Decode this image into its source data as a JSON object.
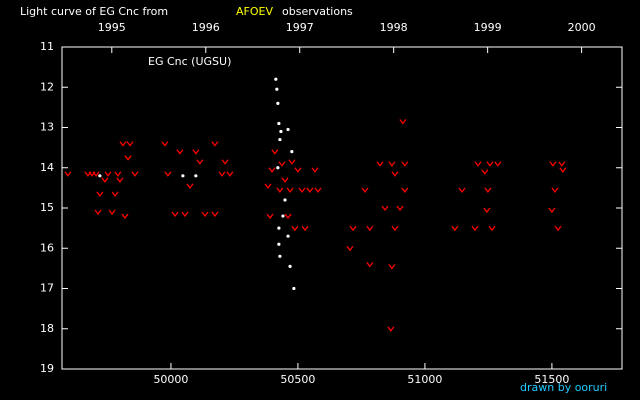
{
  "chart_data": {
    "type": "scatter",
    "title": "Light curve of EG Cnc from",
    "title_highlight": "AFOEV",
    "title_end": "observations",
    "annotation": "EG Cnc (UGSU)",
    "credit": "drawn by ooruri",
    "xlim": [
      49571,
      51776
    ],
    "xticks": [
      50000,
      50500,
      51000,
      51500
    ],
    "x2lim": [
      1994.47,
      2000.43
    ],
    "x2ticks": [
      1995,
      1996,
      1997,
      1998,
      1999,
      2000
    ],
    "ylim": [
      19,
      11
    ],
    "yticks": [
      11,
      12,
      13,
      14,
      15,
      16,
      17,
      18,
      19
    ],
    "series": [
      {
        "color": "#ff0000",
        "marker": "v",
        "x": [
          49594,
          49673,
          49689,
          49705,
          49713,
          49720,
          49740,
          49752,
          49768,
          49780,
          49791,
          49799,
          49811,
          49819,
          49831,
          49839,
          49858,
          49976,
          49988,
          50016,
          50035,
          50055,
          50075,
          50098,
          50114,
          50134,
          50173,
          50173,
          50201,
          50213,
          50232,
          50382,
          50390,
          50398,
          50409,
          50429,
          50437,
          50449,
          50461,
          50469,
          50476,
          50488,
          50500,
          50516,
          50528,
          50547,
          50567,
          50579,
          50705,
          50717,
          50764,
          50783,
          50783,
          50823,
          50843,
          50866,
          50870,
          50870,
          50882,
          50882,
          50902,
          50913,
          50921,
          50921,
          51118,
          51146,
          51197,
          51209,
          51236,
          51244,
          51248,
          51256,
          51264,
          51287,
          51500,
          51504,
          51512,
          51524,
          51539,
          51543
        ],
        "values": [
          14.15,
          14.15,
          14.15,
          14.15,
          15.1,
          14.65,
          14.3,
          14.15,
          15.1,
          14.65,
          14.15,
          14.3,
          13.4,
          15.2,
          13.75,
          13.4,
          14.15,
          13.4,
          14.15,
          15.15,
          13.6,
          15.15,
          14.45,
          13.6,
          13.85,
          15.15,
          13.4,
          15.15,
          14.15,
          13.85,
          14.15,
          14.45,
          15.2,
          14.05,
          13.6,
          14.55,
          13.9,
          14.3,
          15.2,
          14.55,
          13.85,
          15.5,
          14.05,
          14.55,
          15.5,
          14.55,
          14.05,
          14.55,
          16.0,
          15.5,
          14.55,
          16.4,
          15.5,
          13.9,
          15.0,
          18.0,
          16.45,
          13.9,
          15.5,
          14.15,
          15.0,
          12.85,
          13.9,
          14.55,
          15.5,
          14.55,
          15.5,
          13.9,
          14.1,
          15.05,
          14.55,
          13.9,
          15.5,
          13.9,
          15.05,
          13.9,
          14.55,
          15.5,
          13.9,
          14.05
        ]
      },
      {
        "color": "#ffffff",
        "marker": "dot",
        "x": [
          49720,
          50047,
          50098,
          50413,
          50417,
          50421,
          50425,
          50429,
          50421,
          50425,
          50425,
          50429,
          50461,
          50449,
          50461,
          50469,
          50476,
          50484,
          50433,
          50441
        ],
        "values": [
          14.2,
          14.2,
          14.2,
          11.8,
          12.05,
          12.4,
          12.9,
          13.3,
          14.0,
          15.5,
          15.9,
          16.2,
          13.05,
          14.8,
          15.7,
          16.45,
          13.6,
          17.0,
          13.1,
          15.2
        ]
      }
    ]
  }
}
